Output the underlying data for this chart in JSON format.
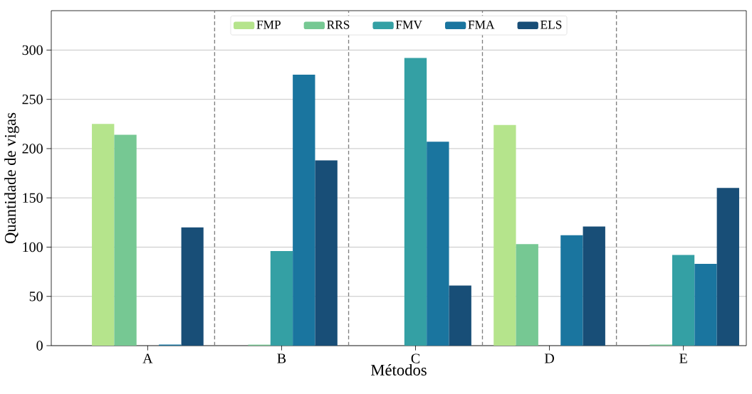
{
  "chart_data": {
    "type": "bar",
    "xlabel": "Métodos",
    "ylabel": "Quantidade de vigas",
    "categories": [
      "A",
      "B",
      "C",
      "D",
      "E"
    ],
    "series": [
      {
        "name": "FMP",
        "color": "#b5e48c",
        "values": [
          225,
          0,
          0,
          224,
          0
        ]
      },
      {
        "name": "RRS",
        "color": "#76c893",
        "values": [
          214,
          1,
          0,
          103,
          1
        ]
      },
      {
        "name": "FMV",
        "color": "#34a0a4",
        "values": [
          0,
          96,
          292,
          0,
          92
        ]
      },
      {
        "name": "FMA",
        "color": "#1a759f",
        "values": [
          1,
          275,
          207,
          112,
          83
        ]
      },
      {
        "name": "ELS",
        "color": "#184e77",
        "values": [
          120,
          188,
          61,
          121,
          160
        ]
      }
    ],
    "ylim": [
      0,
      340
    ],
    "yticks": [
      0,
      50,
      100,
      150,
      200,
      250,
      300
    ],
    "grid": "y",
    "legend": "top"
  }
}
